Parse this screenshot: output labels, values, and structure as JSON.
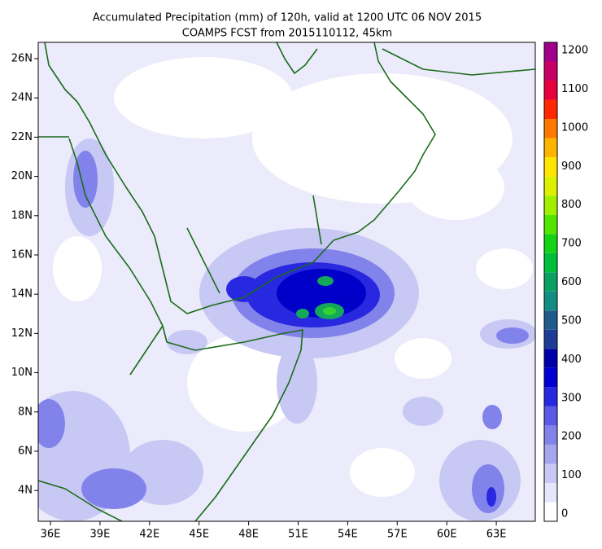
{
  "header": {
    "title": "Accumulated Precipitation (mm) of 120h, valid at 1200 UTC 06 NOV 2015",
    "subtitle": "COAMPS FCST from 2015110112, 45km"
  },
  "map": {
    "lon_range": [
      35.26,
      65.36
    ],
    "lat_range": [
      2.43,
      26.83
    ],
    "lon_ticks": [
      {
        "value": 36,
        "label": "36E"
      },
      {
        "value": 39,
        "label": "39E"
      },
      {
        "value": 42,
        "label": "42E"
      },
      {
        "value": 45,
        "label": "45E"
      },
      {
        "value": 48,
        "label": "48E"
      },
      {
        "value": 51,
        "label": "51E"
      },
      {
        "value": 54,
        "label": "54E"
      },
      {
        "value": 57,
        "label": "57E"
      },
      {
        "value": 60,
        "label": "60E"
      },
      {
        "value": 63,
        "label": "63E"
      }
    ],
    "lat_ticks": [
      {
        "value": 26,
        "label": "26N"
      },
      {
        "value": 24,
        "label": "24N"
      },
      {
        "value": 22,
        "label": "22N"
      },
      {
        "value": 20,
        "label": "20N"
      },
      {
        "value": 18,
        "label": "18N"
      },
      {
        "value": 16,
        "label": "16N"
      },
      {
        "value": 14,
        "label": "14N"
      },
      {
        "value": 12,
        "label": "12N"
      },
      {
        "value": 10,
        "label": "10N"
      },
      {
        "value": 8,
        "label": "8N"
      },
      {
        "value": 6,
        "label": "6N"
      },
      {
        "value": 4,
        "label": "4N"
      }
    ]
  },
  "colorbar": {
    "range": [
      0,
      1200
    ],
    "ticks": [
      0,
      100,
      200,
      300,
      400,
      500,
      600,
      700,
      800,
      900,
      1000,
      1100,
      1200
    ],
    "colors": [
      "#ffffff",
      "#e6e6fa",
      "#c8c8f5",
      "#a5a5f0",
      "#8282eb",
      "#5a5ae6",
      "#2828e0",
      "#0000d2",
      "#0000aa",
      "#1e3c96",
      "#1e5a8c",
      "#148c82",
      "#0aa064",
      "#00be3c",
      "#14d214",
      "#50e600",
      "#a0f000",
      "#dcf000",
      "#ffe600",
      "#ffb400",
      "#ff7800",
      "#ff2800",
      "#e6003c",
      "#c80064",
      "#a0008c"
    ]
  }
}
